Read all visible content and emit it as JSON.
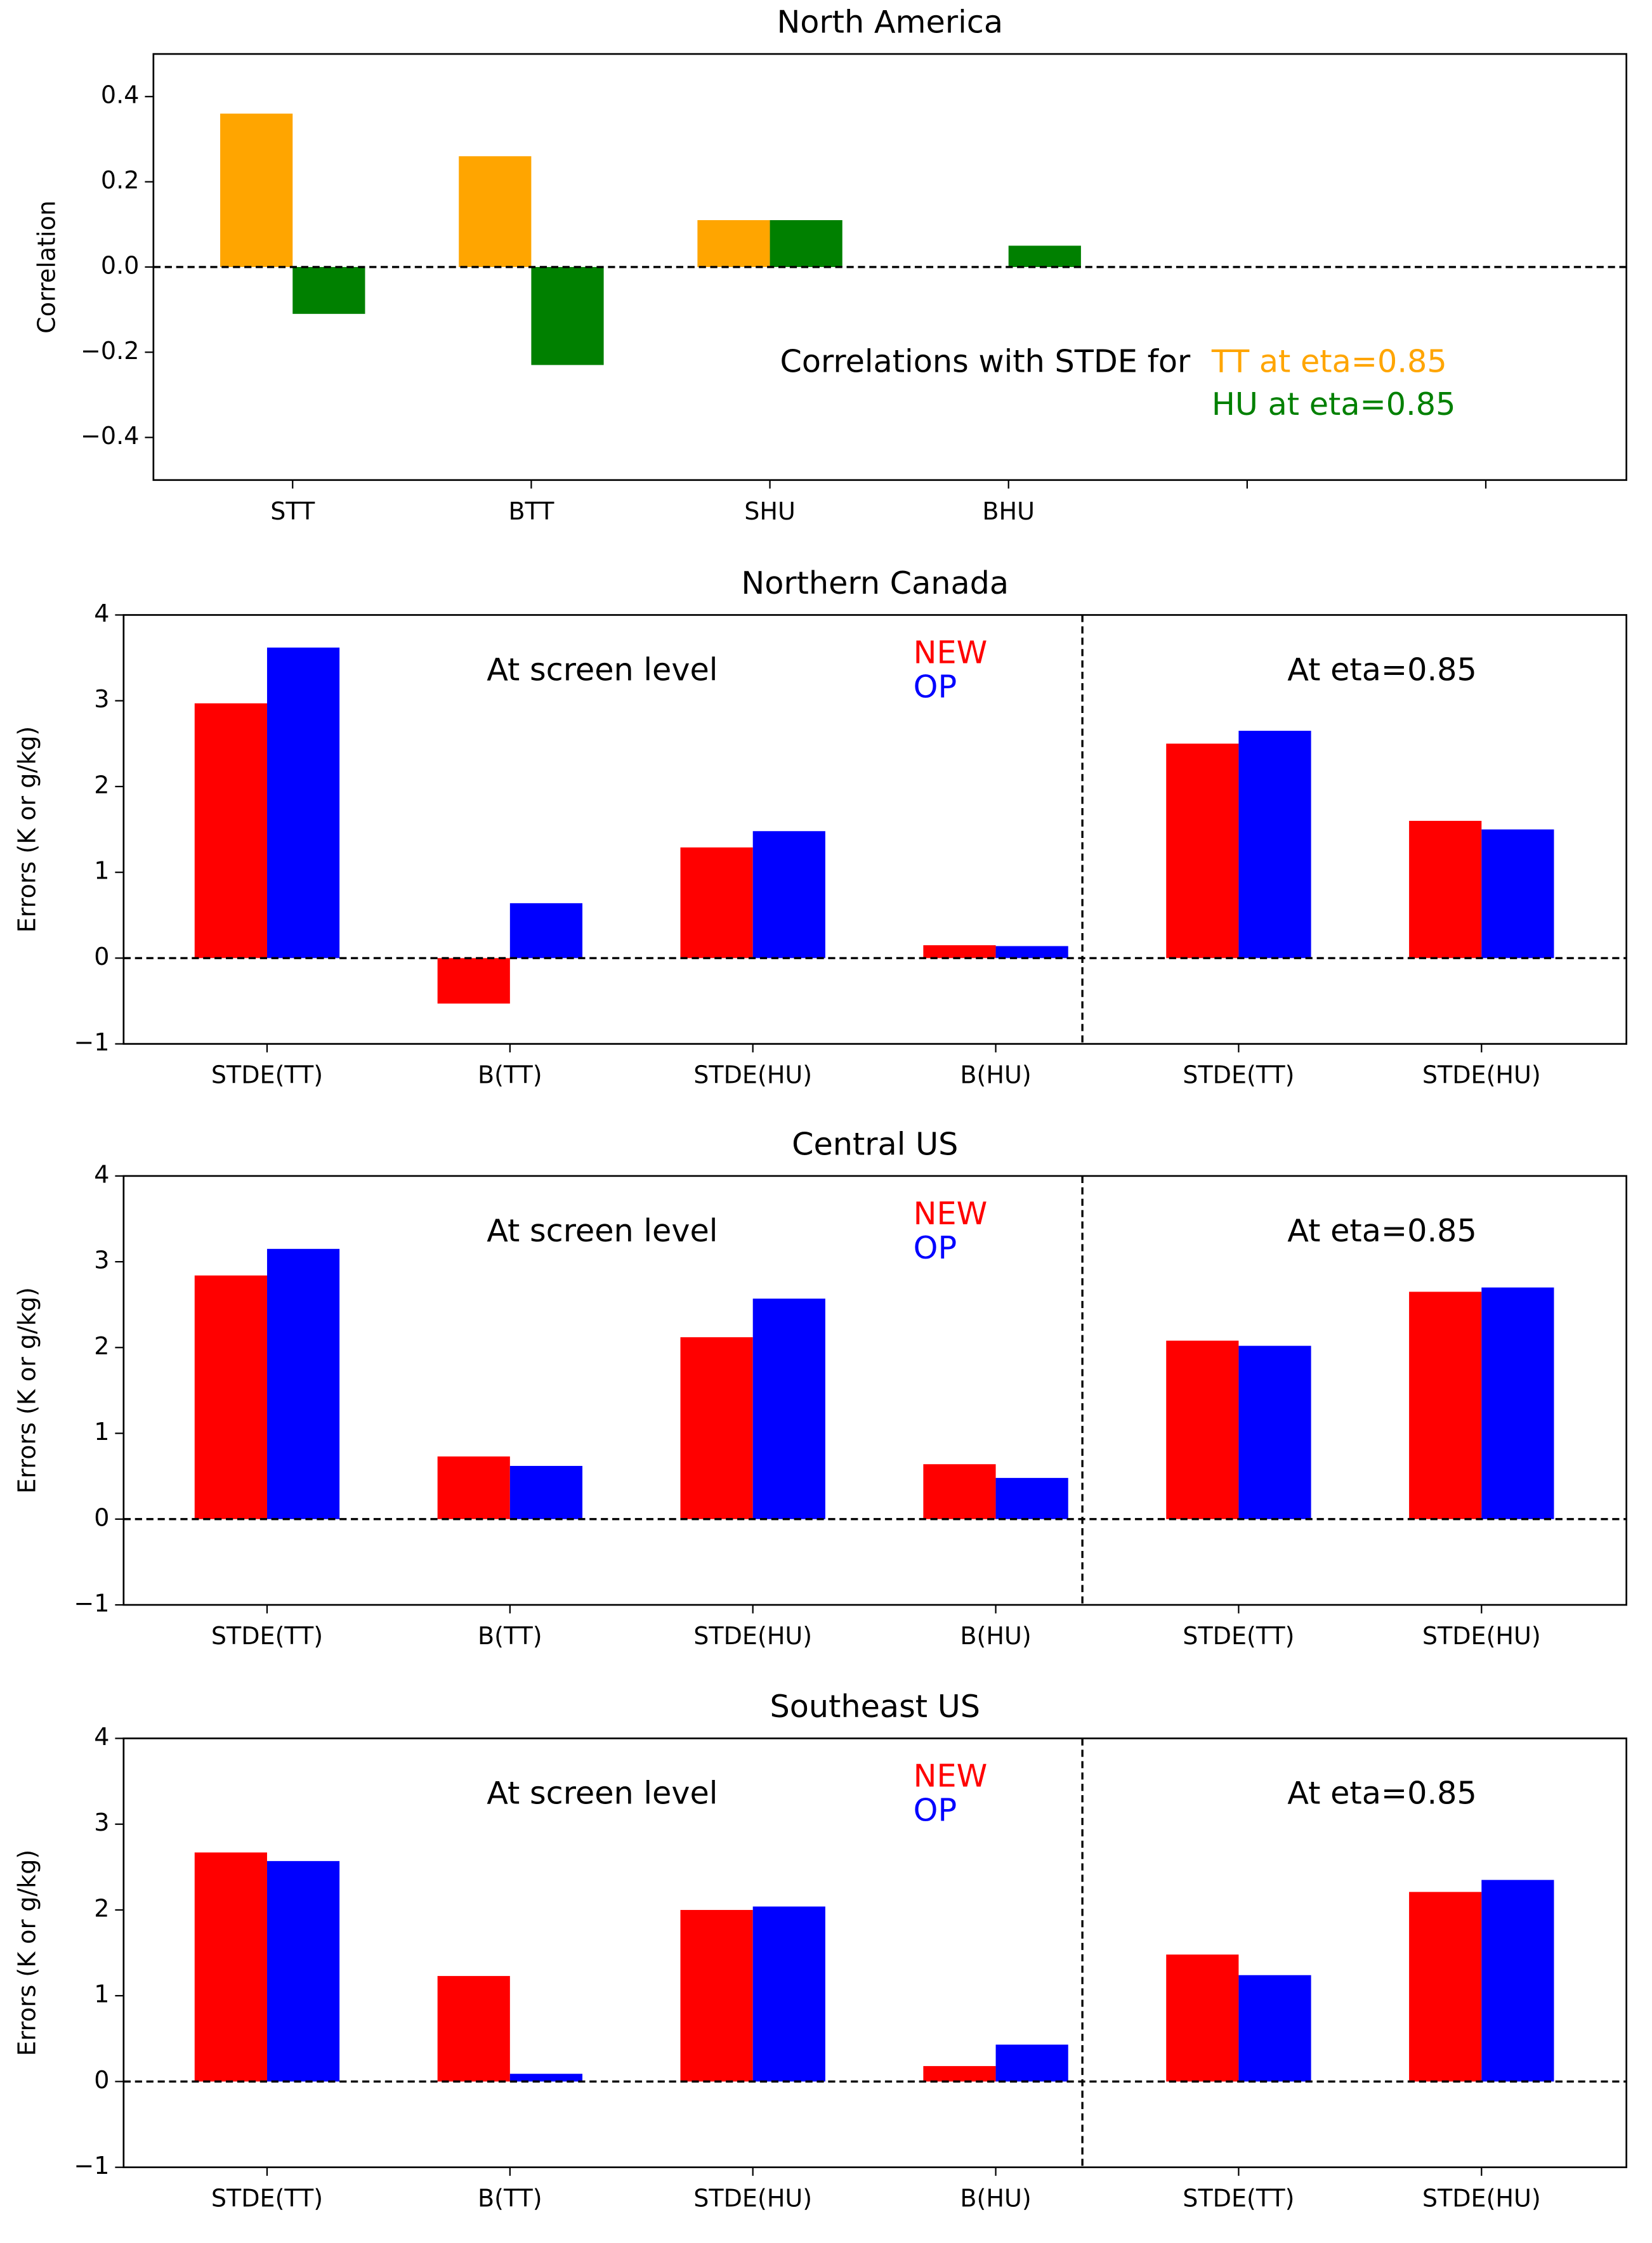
{
  "chart_data": [
    {
      "type": "bar",
      "title": "North America",
      "ylabel": "Correlation",
      "categories": [
        "STT",
        "BTT",
        "SHU",
        "BHU",
        null,
        null
      ],
      "annotations": [
        "Correlations with STDE for"
      ],
      "series": [
        {
          "name": "TT at eta=0.85",
          "color": "#ffa500",
          "values": [
            0.36,
            0.26,
            0.11,
            0,
            null,
            null
          ]
        },
        {
          "name": "HU at eta=0.85",
          "color": "#008000",
          "values": [
            -0.11,
            -0.23,
            0.11,
            0.05,
            null,
            null
          ]
        }
      ],
      "ylim": [
        -0.5,
        0.5
      ],
      "yticks": [
        {
          "value": -0.4,
          "label": "−0.4"
        },
        {
          "value": -0.2,
          "label": "−0.2"
        },
        {
          "value": 0,
          "label": "0.0"
        },
        0.2,
        0.4
      ]
    },
    {
      "type": "bar",
      "title": "Northern Canada",
      "ylabel": "Errors (K or g/kg)",
      "categories": [
        "STDE(TT)",
        "B(TT)",
        "STDE(HU)",
        "B(HU)",
        "STDE(TT)",
        "STDE(HU)"
      ],
      "annotations": [
        "At screen level",
        "At eta=0.85"
      ],
      "series": [
        {
          "name": "NEW",
          "color": "#ff0000",
          "values": [
            2.97,
            -0.53,
            1.29,
            0.15,
            2.5,
            1.6
          ]
        },
        {
          "name": "OP",
          "color": "#0000ff",
          "values": [
            3.62,
            0.64,
            1.48,
            0.14,
            2.65,
            1.5
          ]
        }
      ],
      "ylim": [
        -1,
        4
      ],
      "yticks": [
        {
          "value": -1,
          "label": "−1"
        },
        0,
        1,
        2,
        3,
        4
      ]
    },
    {
      "type": "bar",
      "title": "Central US",
      "ylabel": "Errors (K or g/kg)",
      "categories": [
        "STDE(TT)",
        "B(TT)",
        "STDE(HU)",
        "B(HU)",
        "STDE(TT)",
        "STDE(HU)"
      ],
      "annotations": [
        "At screen level",
        "At eta=0.85"
      ],
      "series": [
        {
          "name": "NEW",
          "color": "#ff0000",
          "values": [
            2.84,
            0.73,
            2.12,
            0.64,
            2.08,
            2.65
          ]
        },
        {
          "name": "OP",
          "color": "#0000ff",
          "values": [
            3.15,
            0.62,
            2.57,
            0.48,
            2.02,
            2.7
          ]
        }
      ],
      "ylim": [
        -1,
        4
      ],
      "yticks": [
        {
          "value": -1,
          "label": "−1"
        },
        0,
        1,
        2,
        3,
        4
      ]
    },
    {
      "type": "bar",
      "title": "Southeast US",
      "ylabel": "Errors (K or g/kg)",
      "categories": [
        "STDE(TT)",
        "B(TT)",
        "STDE(HU)",
        "B(HU)",
        "STDE(TT)",
        "STDE(HU)"
      ],
      "annotations": [
        "At screen level",
        "At eta=0.85"
      ],
      "series": [
        {
          "name": "NEW",
          "color": "#ff0000",
          "values": [
            2.67,
            1.23,
            2.0,
            0.18,
            1.48,
            2.21
          ]
        },
        {
          "name": "OP",
          "color": "#0000ff",
          "values": [
            2.57,
            0.09,
            2.04,
            0.43,
            1.24,
            2.35
          ]
        }
      ],
      "ylim": [
        -1,
        4
      ],
      "yticks": [
        {
          "value": -1,
          "label": "−1"
        },
        0,
        1,
        2,
        3,
        4
      ]
    }
  ]
}
